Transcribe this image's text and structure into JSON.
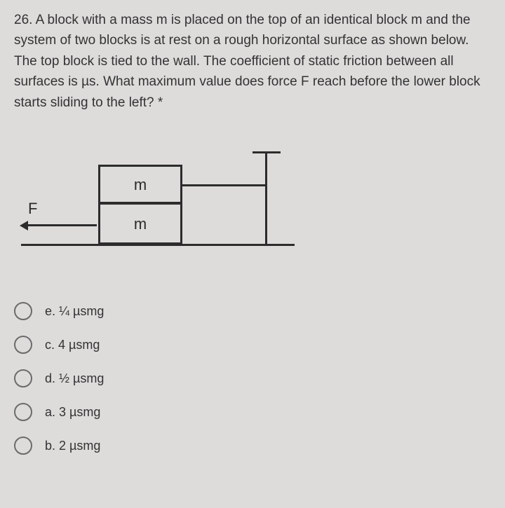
{
  "question": {
    "number": "26.",
    "text": "A block with a mass m is placed on the top of an identical block m and the system of two blocks is at rest on a rough horizontal surface as shown below. The top block is tied to the wall. The coefficient of static friction between all surfaces is µs. What maximum value does force F reach before the lower block starts sliding to the left? *"
  },
  "figure": {
    "upper_label": "m",
    "lower_label": "m",
    "force_label": "F"
  },
  "options": [
    {
      "letter": "e.",
      "text": "¼ µsmg"
    },
    {
      "letter": "c.",
      "text": "4 µsmg"
    },
    {
      "letter": "d.",
      "text": "½ µsmg"
    },
    {
      "letter": "a.",
      "text": "3 µsmg"
    },
    {
      "letter": "b.",
      "text": "2 µsmg"
    }
  ],
  "colors": {
    "background": "#dedcdb",
    "text": "#333333",
    "line": "#2c2c2c",
    "radio_border": "#6b6b6b"
  }
}
